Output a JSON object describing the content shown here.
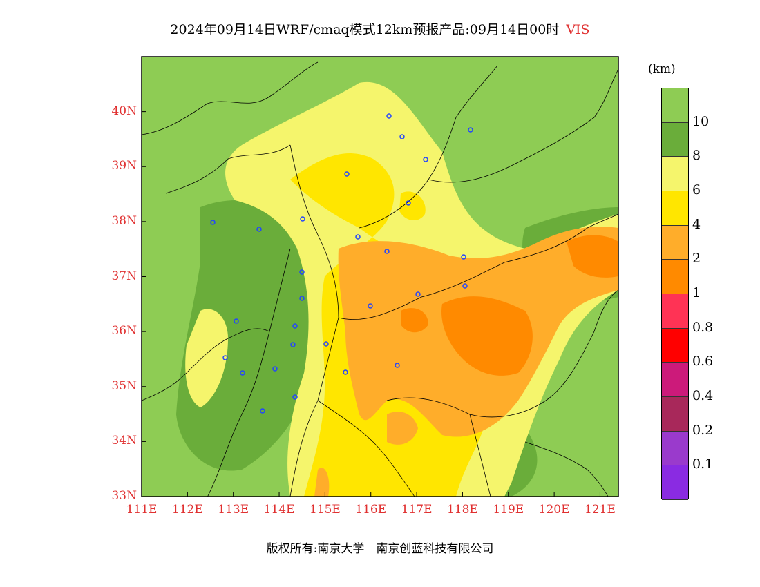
{
  "title": {
    "text": "2024年09月14日WRF/cmaq模式12km预报产品:09月14日00时",
    "variable": "VIS"
  },
  "map": {
    "lat_labels": [
      "40N",
      "39N",
      "38N",
      "37N",
      "36N",
      "35N",
      "34N",
      "33N"
    ],
    "lon_labels": [
      "111E",
      "112E",
      "113E",
      "114E",
      "115E",
      "116E",
      "117E",
      "118E",
      "119E",
      "120E",
      "121E"
    ],
    "lon_range": [
      111,
      121.4
    ],
    "lat_range": [
      33,
      41
    ]
  },
  "colorbar": {
    "unit": "(km)",
    "labels": [
      "10",
      "8",
      "6",
      "4",
      "2",
      "1",
      "0.8",
      "0.6",
      "0.4",
      "0.2",
      "0.1"
    ],
    "colors": [
      "#8ecc54",
      "#6aad3a",
      "#f5f56c",
      "#ffe600",
      "#ffad2a",
      "#ff8a00",
      "#ff3355",
      "#ff0000",
      "#cc1a7a",
      "#a8285a",
      "#9a3acc",
      "#8a2be2"
    ]
  },
  "footer": {
    "left": "版权所有:南京大学",
    "right": "南京创蓝科技有限公司"
  }
}
